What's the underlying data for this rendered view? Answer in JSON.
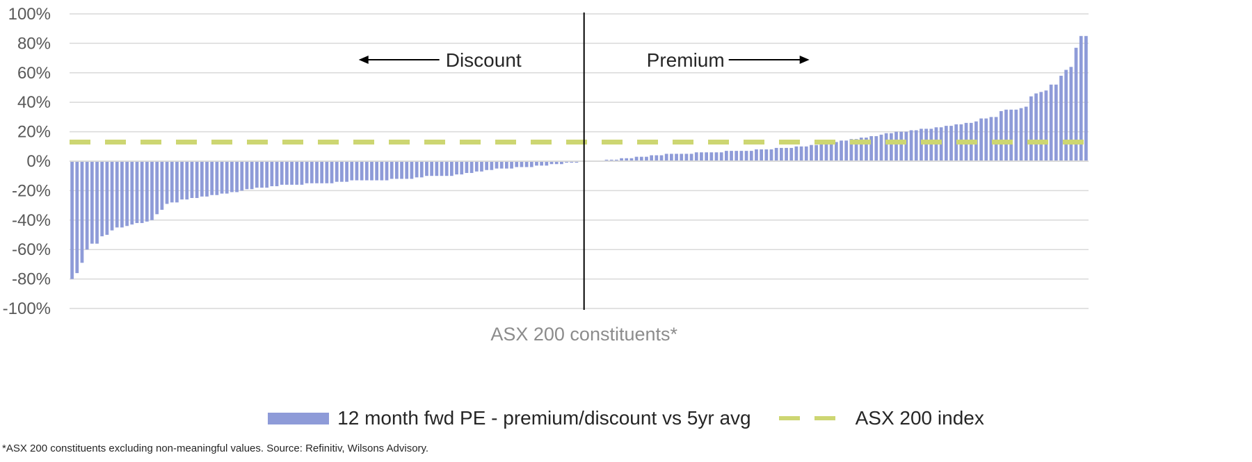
{
  "chart_data": {
    "type": "bar",
    "title": "",
    "xlabel": "ASX 200 constituents*",
    "ylabel": "",
    "ylim": [
      -100,
      100
    ],
    "yticks": [
      100,
      80,
      60,
      40,
      20,
      0,
      -20,
      -40,
      -60,
      -80,
      -100
    ],
    "ytick_labels": [
      "100%",
      "80%",
      "60%",
      "40%",
      "20%",
      "0%",
      "-20%",
      "-40%",
      "-60%",
      "-80%",
      "-100%"
    ],
    "grid": true,
    "annotations": {
      "discount": "Discount",
      "premium": "Premium"
    },
    "series": [
      {
        "name": "12 month fwd PE - premium/discount vs 5yr avg",
        "kind": "bar",
        "color": "#8e9bd8",
        "values": [
          -80,
          -76,
          -69,
          -60,
          -56,
          -56,
          -51,
          -50,
          -47,
          -45,
          -45,
          -44,
          -43,
          -42,
          -42,
          -41,
          -40,
          -36,
          -33,
          -29,
          -28,
          -28,
          -26,
          -26,
          -25,
          -25,
          -24,
          -24,
          -23,
          -23,
          -22,
          -22,
          -21,
          -21,
          -20,
          -19,
          -19,
          -18,
          -18,
          -18,
          -17,
          -17,
          -16,
          -16,
          -16,
          -16,
          -16,
          -15,
          -15,
          -15,
          -15,
          -15,
          -15,
          -14,
          -14,
          -14,
          -13,
          -13,
          -13,
          -13,
          -13,
          -13,
          -13,
          -13,
          -12,
          -12,
          -12,
          -12,
          -12,
          -11,
          -11,
          -10,
          -10,
          -10,
          -10,
          -10,
          -10,
          -9,
          -9,
          -8,
          -8,
          -7,
          -7,
          -6,
          -6,
          -5,
          -5,
          -5,
          -5,
          -4,
          -4,
          -4,
          -4,
          -3,
          -3,
          -3,
          -2,
          -2,
          -2,
          -1,
          -1,
          -1,
          0,
          0,
          0,
          0,
          0,
          1,
          1,
          1,
          2,
          2,
          2,
          3,
          3,
          3,
          4,
          4,
          4,
          5,
          5,
          5,
          5,
          5,
          5,
          6,
          6,
          6,
          6,
          6,
          6,
          7,
          7,
          7,
          7,
          7,
          7,
          8,
          8,
          8,
          8,
          9,
          9,
          9,
          9,
          10,
          10,
          10,
          11,
          11,
          12,
          12,
          13,
          13,
          14,
          14,
          15,
          15,
          16,
          16,
          17,
          17,
          18,
          19,
          19,
          20,
          20,
          20,
          21,
          21,
          22,
          22,
          22,
          23,
          23,
          24,
          24,
          25,
          25,
          26,
          26,
          27,
          29,
          29,
          30,
          30,
          34,
          35,
          35,
          35,
          36,
          37,
          44,
          46,
          47,
          48,
          52,
          52,
          58,
          62,
          64,
          77,
          85,
          85
        ]
      },
      {
        "name": "ASX 200 index",
        "kind": "dashed-line",
        "color": "#cdd672",
        "value": 13
      }
    ]
  },
  "legend": {
    "bar_label": "12 month fwd PE - premium/discount vs 5yr avg",
    "line_label": "ASX 200 index"
  },
  "footnote": "*ASX 200 constituents excluding non-meaningful values. Source: Refinitiv, Wilsons Advisory."
}
